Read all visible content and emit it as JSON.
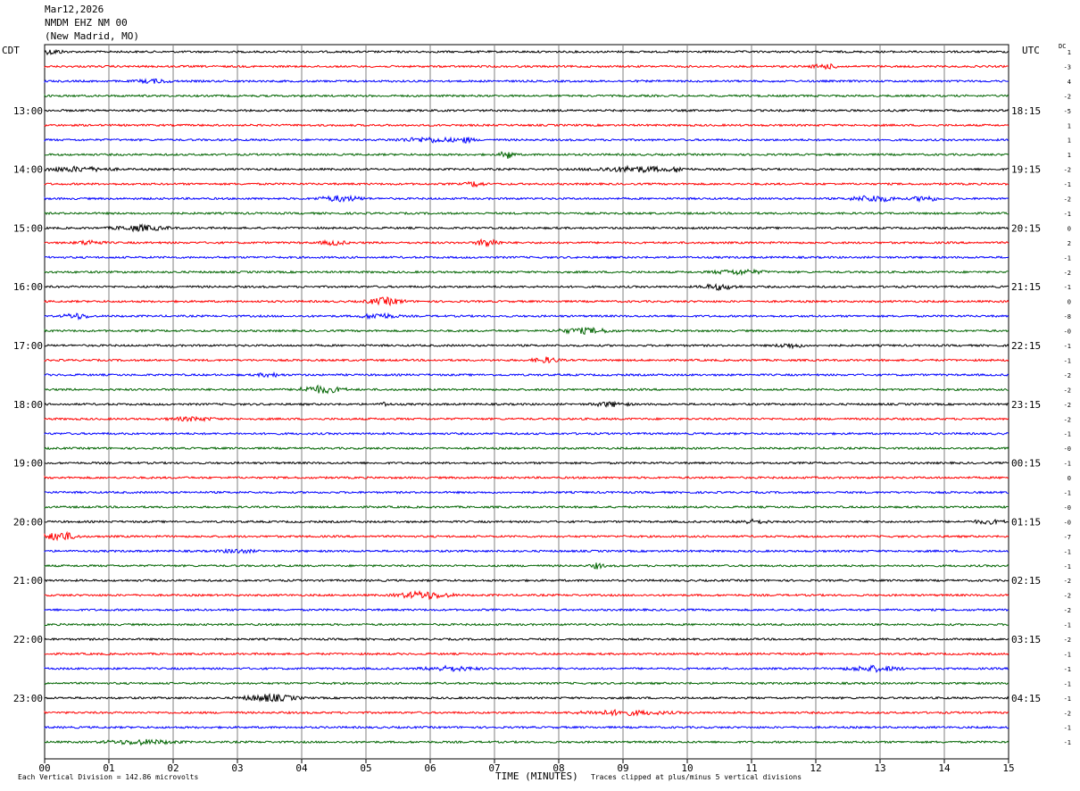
{
  "header": {
    "date": "Mar12,2026",
    "station": "NMDM EHZ NM 00",
    "location": "(New Madrid, MO)"
  },
  "left_tz": "CDT",
  "right_tz": "UTC",
  "dc_label": "DC",
  "footer": {
    "scale_note": "Each Vertical Division = 142.86 microvolts",
    "clip_note": "Traces clipped at plus/minus 5 vertical divisions"
  },
  "colors": {
    "trace_cycle": [
      "#000000",
      "#ff0000",
      "#0000ff",
      "#006400"
    ],
    "grid": "#808080"
  },
  "chart_data": {
    "type": "line",
    "title": "NMDM EHZ NM 00",
    "xlabel": "TIME (MINUTES)",
    "xlim": [
      0,
      15
    ],
    "x_ticks": [
      "00",
      "01",
      "02",
      "03",
      "04",
      "05",
      "06",
      "07",
      "08",
      "09",
      "10",
      "11",
      "12",
      "13",
      "14",
      "15"
    ],
    "row_count": 48,
    "left_hour_labels": [
      "13:00",
      "14:00",
      "15:00",
      "16:00",
      "17:00",
      "18:00",
      "19:00",
      "20:00",
      "21:00",
      "22:00",
      "23:00"
    ],
    "right_hour_labels": [
      "18:15",
      "19:15",
      "20:15",
      "21:15",
      "22:15",
      "23:15",
      "00:15",
      "01:15",
      "02:15",
      "03:15",
      "04:15"
    ],
    "dc_offsets": [
      "1",
      "-3",
      "4",
      "-2",
      "-5",
      "1",
      "1",
      "1",
      "-2",
      "-1",
      "-2",
      "-1",
      "0",
      "2",
      "-1",
      "-2",
      "-1",
      "0",
      "-8",
      "-0",
      "-1",
      "-1",
      "-2",
      "-2",
      "-2",
      "-2",
      "-1",
      "-0",
      "-1",
      "0",
      "-1",
      "-0",
      "-0",
      "-7",
      "-1",
      "-1",
      "-2",
      "-2",
      "-2",
      "-1",
      "-2",
      "-1",
      "-1",
      "-1",
      "-1",
      "-2",
      "-1",
      "-1"
    ],
    "events": [
      {
        "row": 0,
        "minute": 0.1,
        "amp": 2.5,
        "dur": 0.3
      },
      {
        "row": 1,
        "minute": 12.15,
        "amp": 2.5,
        "dur": 0.3
      },
      {
        "row": 2,
        "minute": 1.7,
        "amp": 2,
        "dur": 0.4
      },
      {
        "row": 6,
        "minute": 6.0,
        "amp": 2.5,
        "dur": 0.8
      },
      {
        "row": 6,
        "minute": 6.55,
        "amp": 3,
        "dur": 0.2
      },
      {
        "row": 7,
        "minute": 7.2,
        "amp": 5,
        "dur": 0.15
      },
      {
        "row": 8,
        "minute": 0.5,
        "amp": 2.5,
        "dur": 0.8
      },
      {
        "row": 8,
        "minute": 9.2,
        "amp": 3,
        "dur": 1.0
      },
      {
        "row": 8,
        "minute": 9.85,
        "amp": 4,
        "dur": 0.1
      },
      {
        "row": 9,
        "minute": 6.7,
        "amp": 3,
        "dur": 0.2
      },
      {
        "row": 10,
        "minute": 4.6,
        "amp": 3,
        "dur": 0.5
      },
      {
        "row": 10,
        "minute": 12.9,
        "amp": 3.5,
        "dur": 0.5
      },
      {
        "row": 10,
        "minute": 13.7,
        "amp": 3,
        "dur": 0.3
      },
      {
        "row": 12,
        "minute": 1.5,
        "amp": 3,
        "dur": 0.6
      },
      {
        "row": 13,
        "minute": 0.7,
        "amp": 2.5,
        "dur": 0.3
      },
      {
        "row": 13,
        "minute": 4.5,
        "amp": 2.5,
        "dur": 0.3
      },
      {
        "row": 13,
        "minute": 6.9,
        "amp": 5,
        "dur": 0.25
      },
      {
        "row": 15,
        "minute": 10.8,
        "amp": 2.5,
        "dur": 0.6
      },
      {
        "row": 16,
        "minute": 10.5,
        "amp": 3,
        "dur": 0.4
      },
      {
        "row": 17,
        "minute": 5.3,
        "amp": 4,
        "dur": 0.4
      },
      {
        "row": 18,
        "minute": 0.5,
        "amp": 3,
        "dur": 0.3
      },
      {
        "row": 18,
        "minute": 5.2,
        "amp": 3,
        "dur": 0.4
      },
      {
        "row": 19,
        "minute": 8.4,
        "amp": 3,
        "dur": 0.6
      },
      {
        "row": 20,
        "minute": 11.6,
        "amp": 2.5,
        "dur": 0.3
      },
      {
        "row": 21,
        "minute": 7.8,
        "amp": 3,
        "dur": 0.3
      },
      {
        "row": 22,
        "minute": 3.5,
        "amp": 2,
        "dur": 0.3
      },
      {
        "row": 23,
        "minute": 4.3,
        "amp": 4,
        "dur": 0.5
      },
      {
        "row": 24,
        "minute": 5.3,
        "amp": 2.5,
        "dur": 0.1
      },
      {
        "row": 24,
        "minute": 8.8,
        "amp": 2.5,
        "dur": 0.4
      },
      {
        "row": 25,
        "minute": 2.3,
        "amp": 2,
        "dur": 0.5
      },
      {
        "row": 32,
        "minute": 11.0,
        "amp": 2,
        "dur": 0.4
      },
      {
        "row": 32,
        "minute": 14.7,
        "amp": 2,
        "dur": 0.4
      },
      {
        "row": 33,
        "minute": 0.25,
        "amp": 5,
        "dur": 0.35
      },
      {
        "row": 34,
        "minute": 3.0,
        "amp": 2,
        "dur": 0.4
      },
      {
        "row": 35,
        "minute": 8.6,
        "amp": 3,
        "dur": 0.15
      },
      {
        "row": 37,
        "minute": 5.9,
        "amp": 4,
        "dur": 0.6
      },
      {
        "row": 42,
        "minute": 6.3,
        "amp": 2.5,
        "dur": 0.6
      },
      {
        "row": 42,
        "minute": 12.9,
        "amp": 3,
        "dur": 0.6
      },
      {
        "row": 44,
        "minute": 3.5,
        "amp": 4,
        "dur": 0.6
      },
      {
        "row": 45,
        "minute": 9.0,
        "amp": 2.5,
        "dur": 1.0
      },
      {
        "row": 47,
        "minute": 1.5,
        "amp": 2.5,
        "dur": 0.8
      }
    ]
  }
}
